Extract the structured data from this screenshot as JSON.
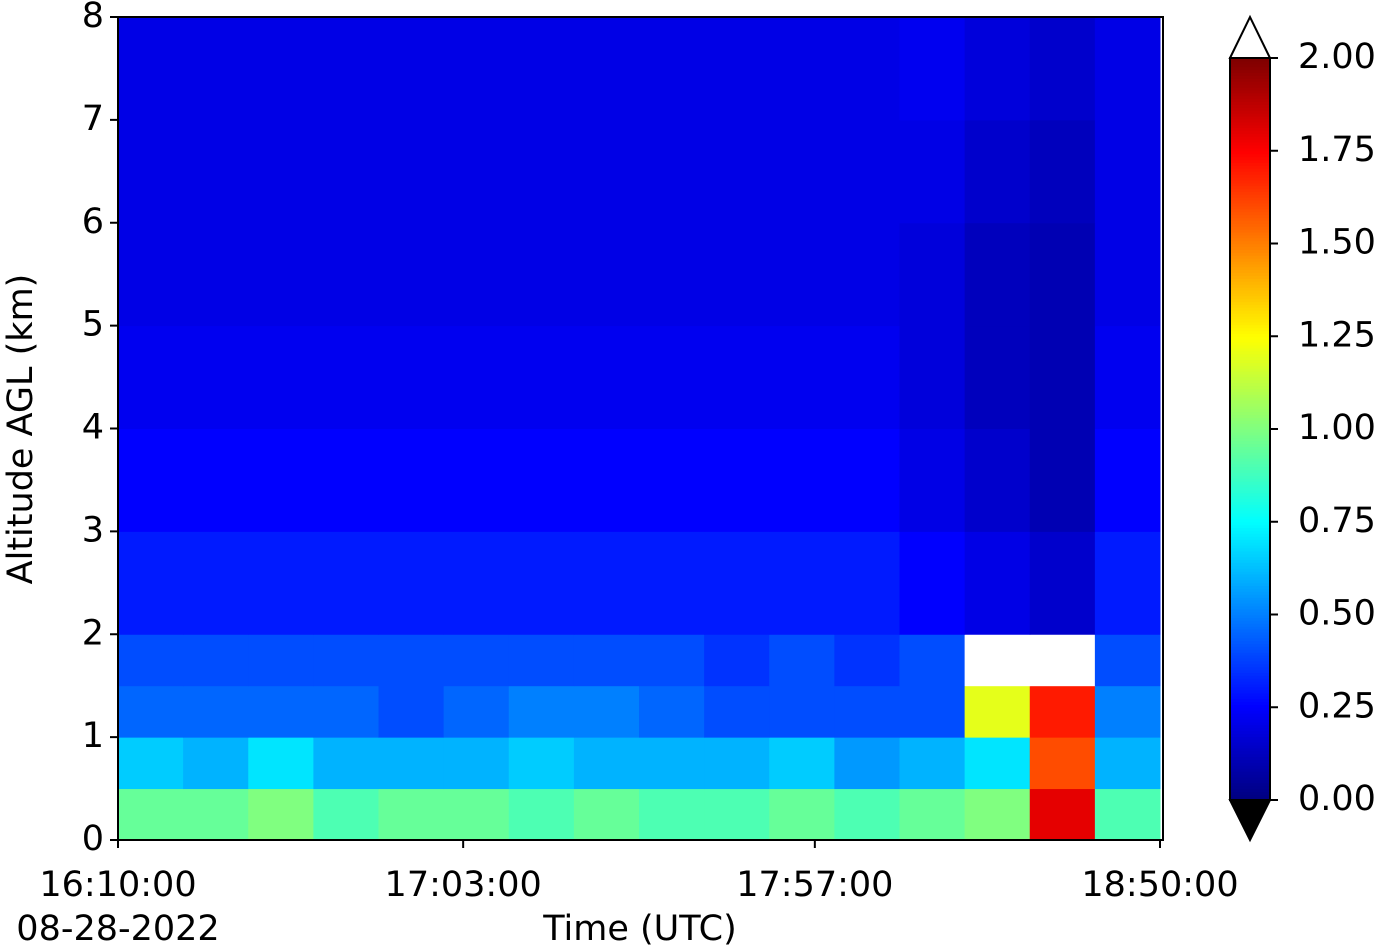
{
  "chart_data": {
    "type": "heatmap",
    "xlabel": "Time (UTC)",
    "ylabel": "Altitude AGL (km)",
    "date_label": "08-28-2022",
    "x_edges": [
      "16:10:00",
      "16:20:00",
      "16:30:00",
      "16:40:00",
      "16:50:00",
      "17:00:00",
      "17:10:00",
      "17:20:00",
      "17:30:00",
      "17:40:00",
      "17:50:00",
      "18:00:00",
      "18:10:00",
      "18:20:00",
      "18:30:00",
      "18:40:00",
      "18:50:00"
    ],
    "y_edges": [
      0,
      0.5,
      1,
      1.5,
      2,
      3,
      4,
      5,
      6,
      7,
      8
    ],
    "z": [
      [
        0.95,
        0.95,
        1.0,
        0.9,
        0.95,
        0.95,
        0.9,
        0.95,
        0.9,
        0.9,
        0.95,
        0.9,
        0.95,
        1.0,
        1.8,
        0.9
      ],
      [
        0.65,
        0.6,
        0.7,
        0.6,
        0.6,
        0.6,
        0.65,
        0.6,
        0.6,
        0.6,
        0.65,
        0.55,
        0.6,
        0.7,
        1.6,
        0.6
      ],
      [
        0.45,
        0.45,
        0.45,
        0.45,
        0.4,
        0.45,
        0.5,
        0.5,
        0.45,
        0.4,
        0.4,
        0.4,
        0.4,
        1.2,
        1.7,
        0.5
      ],
      [
        0.4,
        0.4,
        0.4,
        0.4,
        0.4,
        0.4,
        0.4,
        0.4,
        0.4,
        0.35,
        0.4,
        0.35,
        0.4,
        2.2,
        2.2,
        0.4
      ],
      [
        0.3,
        0.3,
        0.3,
        0.3,
        0.3,
        0.3,
        0.3,
        0.3,
        0.3,
        0.3,
        0.3,
        0.3,
        0.25,
        0.2,
        0.15,
        0.3
      ],
      [
        0.25,
        0.25,
        0.25,
        0.25,
        0.25,
        0.25,
        0.25,
        0.25,
        0.25,
        0.25,
        0.25,
        0.25,
        0.2,
        0.15,
        0.1,
        0.25
      ],
      [
        0.22,
        0.22,
        0.22,
        0.22,
        0.22,
        0.22,
        0.22,
        0.22,
        0.22,
        0.22,
        0.22,
        0.22,
        0.18,
        0.12,
        0.1,
        0.22
      ],
      [
        0.2,
        0.2,
        0.2,
        0.2,
        0.2,
        0.2,
        0.2,
        0.2,
        0.2,
        0.2,
        0.2,
        0.2,
        0.18,
        0.12,
        0.1,
        0.2
      ],
      [
        0.2,
        0.2,
        0.2,
        0.2,
        0.2,
        0.2,
        0.2,
        0.2,
        0.2,
        0.2,
        0.2,
        0.2,
        0.2,
        0.15,
        0.12,
        0.2
      ],
      [
        0.2,
        0.2,
        0.2,
        0.2,
        0.2,
        0.2,
        0.2,
        0.2,
        0.2,
        0.2,
        0.2,
        0.2,
        0.22,
        0.18,
        0.15,
        0.2
      ]
    ],
    "xlim": [
      "16:10:00",
      "18:50:00"
    ],
    "xticks": [
      "16:10:00",
      "17:03:00",
      "17:57:00",
      "18:50:00"
    ],
    "ylim": [
      0,
      8
    ],
    "yticks": [
      0,
      1,
      2,
      3,
      4,
      5,
      6,
      7,
      8
    ],
    "colormap": "jet",
    "clim": [
      0,
      2
    ],
    "over_color": "#ffffff",
    "under_color": "#000000",
    "cticks": [
      {
        "value": 0,
        "label": "0.00"
      },
      {
        "value": 0.25,
        "label": "0.25"
      },
      {
        "value": 0.5,
        "label": "0.50"
      },
      {
        "value": 0.75,
        "label": "0.75"
      },
      {
        "value": 1,
        "label": "1.00"
      },
      {
        "value": 1.25,
        "label": "1.25"
      },
      {
        "value": 1.5,
        "label": "1.50"
      },
      {
        "value": 1.75,
        "label": "1.75"
      },
      {
        "value": 2,
        "label": "2.00"
      }
    ]
  }
}
